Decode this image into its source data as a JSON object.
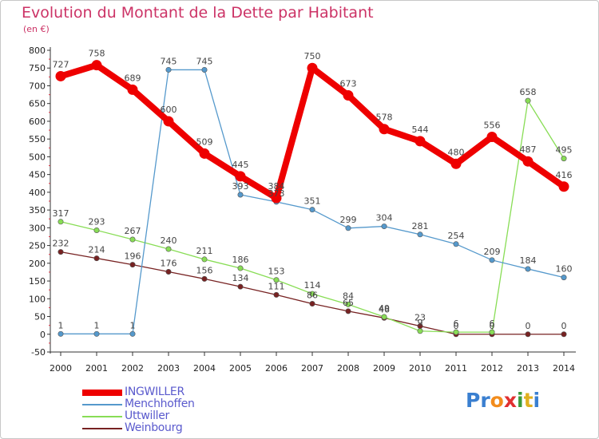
{
  "title": "Evolution du Montant de la Dette par Habitant",
  "unit": "(en €)",
  "logo": {
    "text": "Proxiti",
    "colors": [
      "#3a7fd0",
      "#3a7fd0",
      "#f28c1c",
      "#e03030",
      "#3a9a3a",
      "#e0b020",
      "#3a7fd0"
    ]
  },
  "chart_data": {
    "type": "line",
    "title": "Evolution du Montant de la Dette par Habitant",
    "ylabel": "(en €)",
    "xlabel": "",
    "ylim": [
      -50,
      800
    ],
    "yticks": [
      -50,
      0,
      50,
      100,
      150,
      200,
      250,
      300,
      350,
      400,
      450,
      500,
      550,
      600,
      650,
      700,
      750,
      800
    ],
    "ytick_labels": [
      "-50",
      "0",
      "50",
      "100",
      "150",
      "200",
      "250",
      "300",
      "350",
      "400",
      "450",
      "500",
      "550",
      "600",
      "650",
      "700",
      "750",
      "800"
    ],
    "x": [
      "2000",
      "2001",
      "2002",
      "2003",
      "2004",
      "2005",
      "2006",
      "2007",
      "2008",
      "2009",
      "2010",
      "2011",
      "2012",
      "2013",
      "2014"
    ],
    "grid": false,
    "legend_position": "bottom-left",
    "series": [
      {
        "name": "INGWILLER",
        "color": "#ee0000",
        "values": [
          727,
          758,
          689,
          600,
          509,
          445,
          384,
          750,
          673,
          578,
          544,
          480,
          556,
          487,
          416
        ],
        "labels": [
          "727",
          "758",
          "689",
          "600",
          "509",
          "445",
          "384",
          "750",
          "673",
          "578",
          "544",
          "480",
          "556",
          "487",
          "416"
        ]
      },
      {
        "name": "Menchhoffen",
        "color": "#5599cc",
        "values": [
          1,
          1,
          1,
          745,
          745,
          393,
          373,
          351,
          299,
          304,
          281,
          254,
          209,
          184,
          160
        ],
        "labels": [
          "1",
          "1",
          "1",
          "745",
          "745",
          "393",
          "373",
          "351",
          "299",
          "304",
          "281",
          "254",
          "209",
          "184",
          "160"
        ]
      },
      {
        "name": "Uttwiller",
        "color": "#88dd55",
        "values": [
          317,
          293,
          267,
          240,
          211,
          186,
          153,
          114,
          84,
          49,
          9,
          6,
          6,
          658,
          495
        ],
        "labels": [
          "317",
          "293",
          "267",
          "240",
          "211",
          "186",
          "153",
          "114",
          "84",
          "49",
          "9",
          "6",
          "6",
          "658",
          "495"
        ]
      },
      {
        "name": "Weinbourg",
        "color": "#772222",
        "values": [
          232,
          214,
          196,
          176,
          156,
          134,
          111,
          86,
          65,
          46,
          23,
          0,
          0,
          0,
          0
        ],
        "labels": [
          "232",
          "214",
          "196",
          "176",
          "156",
          "134",
          "111",
          "86",
          "65",
          "46",
          "23",
          "0",
          "0",
          "0",
          "0"
        ]
      }
    ]
  }
}
